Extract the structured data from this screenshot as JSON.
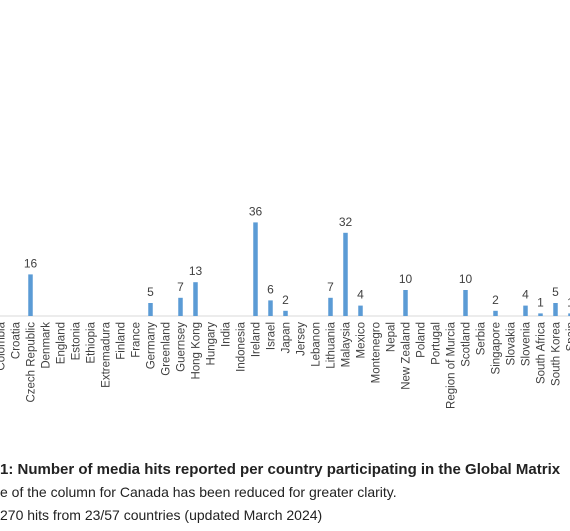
{
  "chart_data": {
    "type": "bar",
    "categories": [
      "Colombia",
      "Croatia",
      "Czech Republic",
      "Denmark",
      "England",
      "Estonia",
      "Ethiopia",
      "Extremadura",
      "Finland",
      "France",
      "Germany",
      "Greenland",
      "Guernsey",
      "Hong Kong",
      "Hungary",
      "India",
      "Indonesia",
      "Ireland",
      "Israel",
      "Japan",
      "Jersey",
      "Lebanon",
      "Lithuania",
      "Malaysia",
      "Mexico",
      "Montenegro",
      "Nepal",
      "New Zealand",
      "Poland",
      "Portugal",
      "Region of Murcia",
      "Scotland",
      "Serbia",
      "Singapore",
      "Slovakia",
      "Slovenia",
      "South Africa",
      "South Korea",
      "Spain"
    ],
    "values": [
      0,
      0,
      16,
      0,
      0,
      0,
      0,
      0,
      0,
      0,
      5,
      0,
      7,
      13,
      0,
      0,
      0,
      36,
      6,
      2,
      0,
      0,
      7,
      32,
      4,
      0,
      0,
      10,
      0,
      0,
      0,
      10,
      0,
      2,
      0,
      4,
      1,
      5,
      1
    ],
    "labels": [
      "",
      "",
      "16",
      "",
      "",
      "",
      "",
      "",
      "",
      "",
      "5",
      "",
      "7",
      "13",
      "",
      "",
      "",
      "36",
      "6",
      "2",
      "",
      "",
      "7",
      "32",
      "4",
      "",
      "",
      "10",
      "",
      "",
      "",
      "10",
      "",
      "2",
      "",
      "4",
      "1",
      "5",
      "1"
    ],
    "ylim": [
      0,
      40
    ],
    "grid": false,
    "bar_color": "#5b9bd5",
    "title": ""
  },
  "caption": {
    "line1": "1: Number of media hits reported per country participating in the Global Matrix",
    "line2": "e of the column for Canada has been reduced for greater clarity.",
    "line3": "270 hits from 23/57 countries (updated March 2024)"
  }
}
